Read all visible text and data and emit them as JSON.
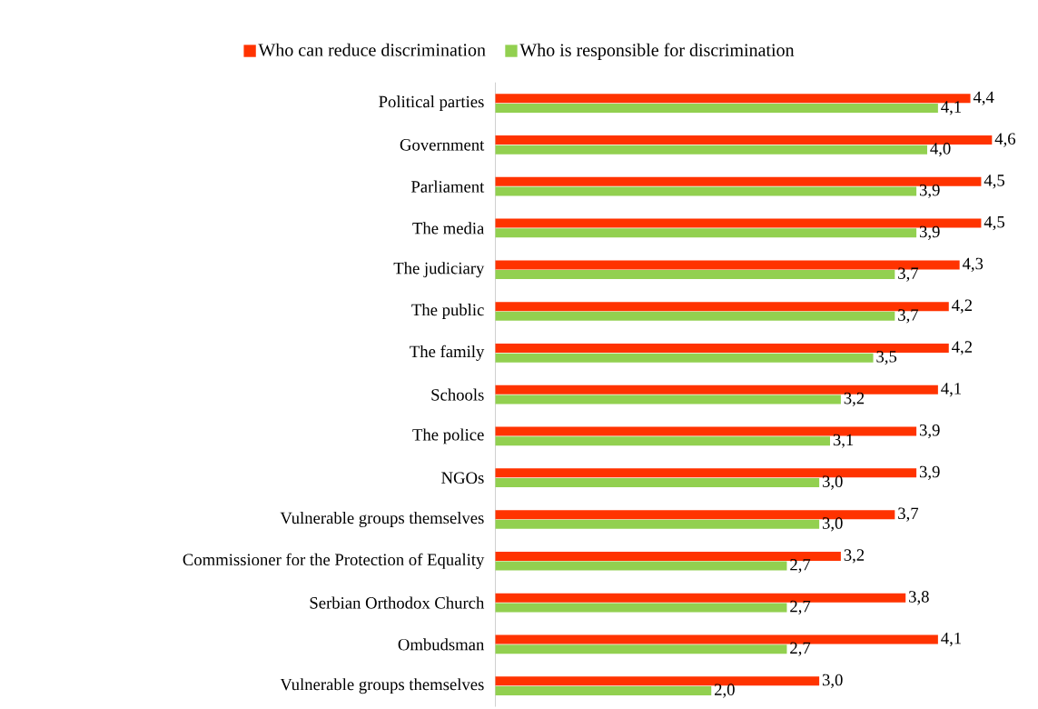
{
  "chart_data": {
    "type": "bar",
    "orientation": "horizontal",
    "categories": [
      "Political parties",
      "Government",
      "Parliament",
      "The media",
      "The judiciary",
      "The public",
      "The family",
      "Schools",
      "The police",
      "NGOs",
      "Vulnerable groups themselves",
      "Commissioner for the Protection of Equality",
      "Serbian Orthodox Church",
      "Ombudsman",
      "Vulnerable groups themselves"
    ],
    "series": [
      {
        "name": "Who can reduce discrimination",
        "color": "#ff3300",
        "values": [
          4.4,
          4.6,
          4.5,
          4.5,
          4.3,
          4.2,
          4.2,
          4.1,
          3.9,
          3.9,
          3.7,
          3.2,
          3.8,
          4.1,
          3.0
        ],
        "value_labels": [
          "4,4",
          "4,6",
          "4,5",
          "4,5",
          "4,3",
          "4,2",
          "4,2",
          "4,1",
          "3,9",
          "3,9",
          "3,7",
          "3,2",
          "3,8",
          "4,1",
          "3,0"
        ]
      },
      {
        "name": "Who is responsible for discrimination",
        "color": "#92d050",
        "values": [
          4.1,
          4.0,
          3.9,
          3.9,
          3.7,
          3.7,
          3.5,
          3.2,
          3.1,
          3.0,
          3.0,
          2.7,
          2.7,
          2.7,
          2.0
        ],
        "value_labels": [
          "4,1",
          "4,0",
          "3,9",
          "3,9",
          "3,7",
          "3,7",
          "3,5",
          "3,2",
          "3,1",
          "3,0",
          "3,0",
          "2,7",
          "2,7",
          "2,7",
          "2,0"
        ]
      }
    ],
    "tick_labels": "y",
    "legend": "top"
  }
}
